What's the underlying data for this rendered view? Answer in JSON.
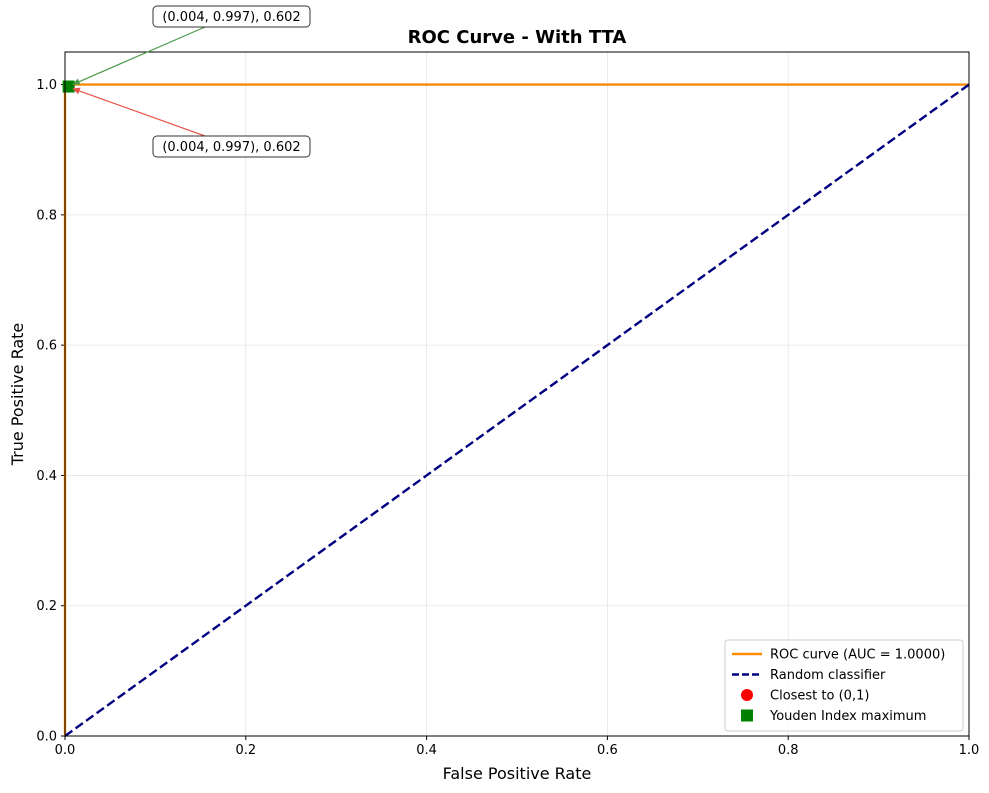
{
  "chart_data": {
    "type": "line",
    "title": "ROC Curve - With TTA",
    "xlabel": "False Positive Rate",
    "ylabel": "True Positive Rate",
    "xlim": [
      0,
      1.0
    ],
    "ylim": [
      0,
      1.05
    ],
    "grid": true,
    "legend_position": "bottom-right",
    "x_ticks": [
      "0.0",
      "0.2",
      "0.4",
      "0.6",
      "0.8",
      "1.0"
    ],
    "y_ticks": [
      "0.0",
      "0.2",
      "0.4",
      "0.6",
      "0.8",
      "1.0"
    ],
    "series": [
      {
        "name": "ROC curve (AUC = 1.0000)",
        "color": "#ff8c00",
        "style": "solid",
        "points": [
          [
            0,
            0
          ],
          [
            0,
            1.0
          ],
          [
            1.0,
            1.0
          ]
        ]
      },
      {
        "name": "Random classifier",
        "color": "#000080",
        "style": "dashed",
        "points": [
          [
            0,
            0
          ],
          [
            1.0,
            1.0
          ]
        ]
      }
    ],
    "markers": [
      {
        "name": "Closest to (0,1)",
        "color": "#ff0000",
        "shape": "circle",
        "x": 0.004,
        "y": 0.997,
        "annotation": "(0.004, 0.997), 0.602",
        "annotation_position": "below-right"
      },
      {
        "name": "Youden Index maximum",
        "color": "#008000",
        "shape": "square",
        "x": 0.004,
        "y": 0.997,
        "annotation": "(0.004, 0.997), 0.602",
        "annotation_position": "above-right"
      }
    ]
  }
}
